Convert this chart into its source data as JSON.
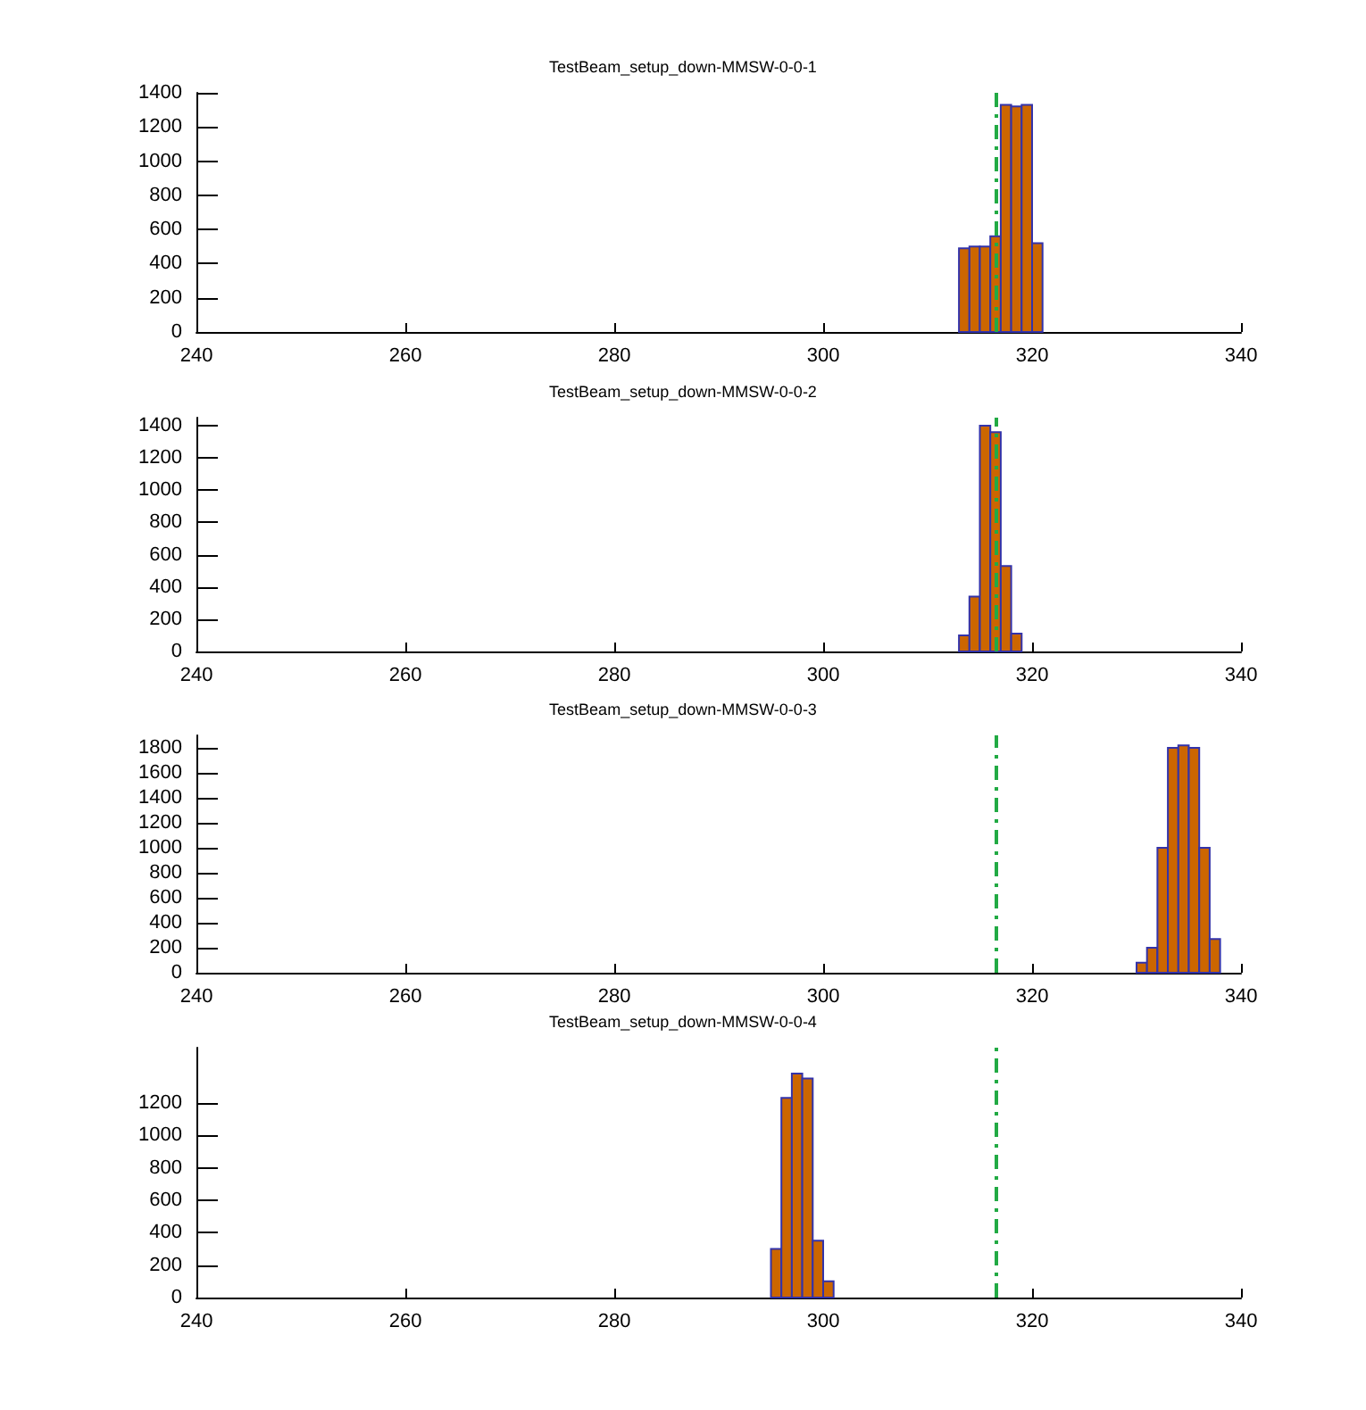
{
  "chart_data": [
    {
      "type": "histogram",
      "title": "TestBeam_setup_down-MMSW-0-0-1",
      "bins": [
        313,
        314,
        315,
        316,
        317,
        318,
        319,
        320,
        321
      ],
      "values": [
        490,
        500,
        500,
        560,
        1330,
        1320,
        1330,
        520
      ],
      "color": "#cc6600",
      "xlim": [
        240,
        340
      ],
      "xticks": [
        240,
        260,
        280,
        300,
        320,
        340
      ],
      "ylim": [
        0,
        1400
      ],
      "yticks": [
        0,
        200,
        400,
        600,
        800,
        1000,
        1200,
        1400
      ],
      "grid": false,
      "ref_lines": [
        {
          "axis": "x",
          "value": 316.6,
          "color": "#22aa44",
          "line_style": "dashed"
        }
      ]
    },
    {
      "type": "histogram",
      "title": "TestBeam_setup_down-MMSW-0-0-2",
      "bins": [
        313,
        314,
        315,
        316,
        317,
        318,
        319
      ],
      "values": [
        100,
        340,
        1400,
        1360,
        530,
        110
      ],
      "color": "#cc6600",
      "xlim": [
        240,
        340
      ],
      "xticks": [
        240,
        260,
        280,
        300,
        320,
        340
      ],
      "ylim": [
        0,
        1450
      ],
      "yticks": [
        0,
        200,
        400,
        600,
        800,
        1000,
        1200,
        1400
      ],
      "grid": false,
      "ref_lines": [
        {
          "axis": "x",
          "value": 316.6,
          "color": "#22aa44",
          "line_style": "dashed"
        }
      ]
    },
    {
      "type": "histogram",
      "title": "TestBeam_setup_down-MMSW-0-0-3",
      "bins": [
        330,
        331,
        332,
        333,
        334,
        335,
        336,
        337,
        338
      ],
      "values": [
        80,
        200,
        1000,
        1800,
        1820,
        1800,
        1000,
        270
      ],
      "color": "#cc6600",
      "xlim": [
        240,
        340
      ],
      "xticks": [
        240,
        260,
        280,
        300,
        320,
        340
      ],
      "ylim": [
        0,
        1900
      ],
      "yticks": [
        0,
        200,
        400,
        600,
        800,
        1000,
        1200,
        1400,
        1600,
        1800
      ],
      "grid": false,
      "ref_lines": [
        {
          "axis": "x",
          "value": 316.6,
          "color": "#22aa44",
          "line_style": "dashed"
        }
      ]
    },
    {
      "type": "histogram",
      "title": "TestBeam_setup_down-MMSW-0-0-4",
      "bins": [
        295,
        296,
        297,
        298,
        299,
        300,
        301
      ],
      "values": [
        300,
        1230,
        1380,
        1350,
        350,
        100
      ],
      "color": "#cc6600",
      "xlim": [
        240,
        340
      ],
      "xticks": [
        240,
        260,
        280,
        300,
        320,
        340
      ],
      "ylim": [
        0,
        1540
      ],
      "yticks": [
        0,
        200,
        400,
        600,
        800,
        1000,
        1200
      ],
      "grid": false,
      "ref_lines": [
        {
          "axis": "x",
          "value": 316.6,
          "color": "#22aa44",
          "line_style": "dashed"
        }
      ]
    }
  ]
}
